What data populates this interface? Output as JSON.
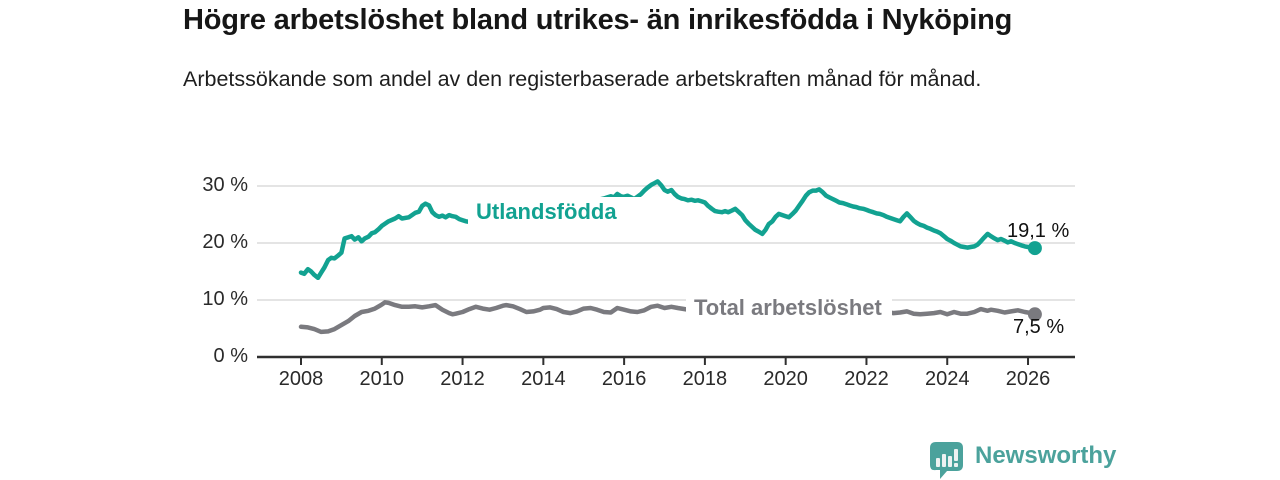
{
  "branding": {
    "name": "Newsworthy",
    "color": "#4BA29C",
    "icon": "speech-bubble-bar-chart-icon"
  },
  "chart_data": {
    "type": "line",
    "title": "Högre arbetslöshet bland utrikes- än inrikesfödda i Nyköping",
    "subtitle": "Arbetssökande som andel av den registerbaserade arbetskraften månad för månad.",
    "xlabel": "",
    "ylabel": "",
    "unit": "%",
    "grid": "horizontal",
    "legend_position": "inline-labels",
    "xlim": [
      2006.9,
      2027.1
    ],
    "ylim": [
      0,
      32
    ],
    "x_axis": {
      "ticks": [
        {
          "value": 2008,
          "label": "2008"
        },
        {
          "value": 2010,
          "label": "2010"
        },
        {
          "value": 2012,
          "label": "2012"
        },
        {
          "value": 2014,
          "label": "2014"
        },
        {
          "value": 2016,
          "label": "2016"
        },
        {
          "value": 2018,
          "label": "2018"
        },
        {
          "value": 2020,
          "label": "2020"
        },
        {
          "value": 2022,
          "label": "2022"
        },
        {
          "value": 2024,
          "label": "2024"
        },
        {
          "value": 2026,
          "label": "2026"
        }
      ]
    },
    "y_axis": {
      "ticks": [
        {
          "value": 0,
          "label": "0 %"
        },
        {
          "value": 10,
          "label": "10 %"
        },
        {
          "value": 20,
          "label": "20 %"
        },
        {
          "value": 30,
          "label": "30 %"
        }
      ]
    },
    "style": {
      "grid_color": "#DBDBDB",
      "axis_color": "#2F2F2F"
    },
    "series": [
      {
        "id": "utlandsfodda",
        "name": "Utlandsfödda",
        "color": "#12A291",
        "end_value": 19.1,
        "end_value_label": "19,1 %",
        "points": [
          [
            2008.0,
            14.8
          ],
          [
            2008.08,
            14.6
          ],
          [
            2008.17,
            15.4
          ],
          [
            2008.25,
            15.0
          ],
          [
            2008.33,
            14.4
          ],
          [
            2008.42,
            13.9
          ],
          [
            2008.5,
            14.8
          ],
          [
            2008.58,
            15.7
          ],
          [
            2008.67,
            17.0
          ],
          [
            2008.75,
            17.4
          ],
          [
            2008.83,
            17.3
          ],
          [
            2008.92,
            17.8
          ],
          [
            2009.0,
            18.3
          ],
          [
            2009.08,
            20.8
          ],
          [
            2009.17,
            21.0
          ],
          [
            2009.25,
            21.2
          ],
          [
            2009.33,
            20.6
          ],
          [
            2009.42,
            21.0
          ],
          [
            2009.5,
            20.3
          ],
          [
            2009.58,
            20.8
          ],
          [
            2009.67,
            21.1
          ],
          [
            2009.75,
            21.7
          ],
          [
            2009.83,
            21.9
          ],
          [
            2009.92,
            22.4
          ],
          [
            2010.0,
            23.0
          ],
          [
            2010.17,
            23.8
          ],
          [
            2010.33,
            24.3
          ],
          [
            2010.42,
            24.7
          ],
          [
            2010.5,
            24.3
          ],
          [
            2010.67,
            24.5
          ],
          [
            2010.83,
            25.3
          ],
          [
            2010.92,
            25.5
          ],
          [
            2011.0,
            26.5
          ],
          [
            2011.08,
            26.9
          ],
          [
            2011.17,
            26.6
          ],
          [
            2011.25,
            25.4
          ],
          [
            2011.33,
            24.9
          ],
          [
            2011.42,
            24.6
          ],
          [
            2011.5,
            24.8
          ],
          [
            2011.58,
            24.5
          ],
          [
            2011.67,
            24.9
          ],
          [
            2011.75,
            24.7
          ],
          [
            2011.83,
            24.6
          ],
          [
            2011.92,
            24.2
          ],
          [
            2012.0,
            24.0
          ],
          [
            2012.08,
            23.8
          ],
          [
            2012.17,
            23.7
          ],
          [
            2012.25,
            23.5
          ],
          [
            2012.33,
            23.6
          ],
          [
            2012.42,
            23.4
          ],
          [
            2012.75,
            23.9
          ],
          [
            2013.25,
            24.6
          ],
          [
            2013.75,
            25.3
          ],
          [
            2014.25,
            26.0
          ],
          [
            2014.75,
            26.7
          ],
          [
            2015.25,
            27.4
          ],
          [
            2015.5,
            27.8
          ],
          [
            2015.58,
            28.0
          ],
          [
            2015.67,
            28.2
          ],
          [
            2015.75,
            28.0
          ],
          [
            2015.83,
            28.6
          ],
          [
            2015.92,
            28.2
          ],
          [
            2016.0,
            28.1
          ],
          [
            2016.08,
            28.3
          ],
          [
            2016.17,
            28.0
          ],
          [
            2016.25,
            27.7
          ],
          [
            2016.33,
            28.1
          ],
          [
            2016.42,
            28.6
          ],
          [
            2016.5,
            29.2
          ],
          [
            2016.58,
            29.7
          ],
          [
            2016.67,
            30.2
          ],
          [
            2016.75,
            30.5
          ],
          [
            2016.83,
            30.8
          ],
          [
            2016.92,
            30.1
          ],
          [
            2017.0,
            29.3
          ],
          [
            2017.08,
            29.0
          ],
          [
            2017.17,
            29.3
          ],
          [
            2017.25,
            28.6
          ],
          [
            2017.33,
            28.1
          ],
          [
            2017.42,
            27.8
          ],
          [
            2017.5,
            27.7
          ],
          [
            2017.58,
            27.5
          ],
          [
            2017.67,
            27.6
          ],
          [
            2017.75,
            27.4
          ],
          [
            2017.83,
            27.5
          ],
          [
            2017.92,
            27.3
          ],
          [
            2018.0,
            27.1
          ],
          [
            2018.08,
            26.5
          ],
          [
            2018.17,
            26.0
          ],
          [
            2018.25,
            25.6
          ],
          [
            2018.33,
            25.5
          ],
          [
            2018.42,
            25.4
          ],
          [
            2018.5,
            25.6
          ],
          [
            2018.58,
            25.4
          ],
          [
            2018.67,
            25.7
          ],
          [
            2018.75,
            26.0
          ],
          [
            2018.83,
            25.5
          ],
          [
            2018.92,
            24.9
          ],
          [
            2019.0,
            24.0
          ],
          [
            2019.08,
            23.4
          ],
          [
            2019.17,
            22.8
          ],
          [
            2019.25,
            22.3
          ],
          [
            2019.33,
            22.0
          ],
          [
            2019.42,
            21.6
          ],
          [
            2019.5,
            22.3
          ],
          [
            2019.58,
            23.3
          ],
          [
            2019.67,
            23.8
          ],
          [
            2019.75,
            24.6
          ],
          [
            2019.83,
            25.1
          ],
          [
            2019.92,
            24.9
          ],
          [
            2020.0,
            24.7
          ],
          [
            2020.08,
            24.5
          ],
          [
            2020.17,
            25.1
          ],
          [
            2020.25,
            25.7
          ],
          [
            2020.33,
            26.5
          ],
          [
            2020.42,
            27.4
          ],
          [
            2020.5,
            28.3
          ],
          [
            2020.58,
            28.9
          ],
          [
            2020.67,
            29.2
          ],
          [
            2020.75,
            29.2
          ],
          [
            2020.83,
            29.4
          ],
          [
            2020.92,
            28.9
          ],
          [
            2021.0,
            28.3
          ],
          [
            2021.08,
            28.0
          ],
          [
            2021.17,
            27.7
          ],
          [
            2021.25,
            27.4
          ],
          [
            2021.33,
            27.1
          ],
          [
            2021.42,
            27.0
          ],
          [
            2021.5,
            26.8
          ],
          [
            2021.58,
            26.6
          ],
          [
            2021.67,
            26.4
          ],
          [
            2021.75,
            26.3
          ],
          [
            2021.83,
            26.1
          ],
          [
            2021.92,
            26.0
          ],
          [
            2022.0,
            25.8
          ],
          [
            2022.08,
            25.6
          ],
          [
            2022.17,
            25.4
          ],
          [
            2022.25,
            25.2
          ],
          [
            2022.33,
            25.1
          ],
          [
            2022.42,
            24.9
          ],
          [
            2022.5,
            24.6
          ],
          [
            2022.58,
            24.4
          ],
          [
            2022.67,
            24.2
          ],
          [
            2022.75,
            24.0
          ],
          [
            2022.83,
            23.8
          ],
          [
            2022.92,
            24.6
          ],
          [
            2023.0,
            25.2
          ],
          [
            2023.08,
            24.6
          ],
          [
            2023.17,
            23.9
          ],
          [
            2023.25,
            23.5
          ],
          [
            2023.33,
            23.2
          ],
          [
            2023.42,
            23.0
          ],
          [
            2023.5,
            22.7
          ],
          [
            2023.58,
            22.5
          ],
          [
            2023.67,
            22.2
          ],
          [
            2023.75,
            22.0
          ],
          [
            2023.83,
            21.7
          ],
          [
            2023.92,
            21.2
          ],
          [
            2024.0,
            20.7
          ],
          [
            2024.08,
            20.4
          ],
          [
            2024.17,
            20.0
          ],
          [
            2024.25,
            19.7
          ],
          [
            2024.33,
            19.4
          ],
          [
            2024.42,
            19.3
          ],
          [
            2024.5,
            19.2
          ],
          [
            2024.58,
            19.3
          ],
          [
            2024.67,
            19.4
          ],
          [
            2024.75,
            19.7
          ],
          [
            2024.83,
            20.3
          ],
          [
            2024.92,
            21.0
          ],
          [
            2025.0,
            21.6
          ],
          [
            2025.08,
            21.2
          ],
          [
            2025.17,
            20.8
          ],
          [
            2025.25,
            20.5
          ],
          [
            2025.33,
            20.7
          ],
          [
            2025.42,
            20.4
          ],
          [
            2025.5,
            20.1
          ],
          [
            2025.58,
            20.3
          ],
          [
            2025.67,
            20.0
          ],
          [
            2025.75,
            19.8
          ],
          [
            2025.83,
            19.6
          ],
          [
            2025.92,
            19.4
          ],
          [
            2026.0,
            19.3
          ],
          [
            2026.08,
            19.2
          ],
          [
            2026.17,
            19.1
          ]
        ]
      },
      {
        "id": "total-arbetsloshet",
        "name": "Total arbetslöshet",
        "color": "#7A7A7F",
        "end_value": 7.5,
        "end_value_label": "7,5 %",
        "points": [
          [
            2008.0,
            5.3
          ],
          [
            2008.17,
            5.2
          ],
          [
            2008.33,
            4.9
          ],
          [
            2008.5,
            4.4
          ],
          [
            2008.67,
            4.5
          ],
          [
            2008.83,
            4.9
          ],
          [
            2009.0,
            5.6
          ],
          [
            2009.17,
            6.3
          ],
          [
            2009.33,
            7.2
          ],
          [
            2009.5,
            7.9
          ],
          [
            2009.67,
            8.1
          ],
          [
            2009.83,
            8.5
          ],
          [
            2010.0,
            9.2
          ],
          [
            2010.08,
            9.6
          ],
          [
            2010.17,
            9.5
          ],
          [
            2010.33,
            9.1
          ],
          [
            2010.5,
            8.8
          ],
          [
            2010.67,
            8.8
          ],
          [
            2010.83,
            8.9
          ],
          [
            2011.0,
            8.7
          ],
          [
            2011.17,
            8.9
          ],
          [
            2011.33,
            9.1
          ],
          [
            2011.5,
            8.3
          ],
          [
            2011.67,
            7.7
          ],
          [
            2011.75,
            7.5
          ],
          [
            2011.83,
            7.6
          ],
          [
            2012.0,
            7.9
          ],
          [
            2012.17,
            8.4
          ],
          [
            2012.33,
            8.8
          ],
          [
            2012.5,
            8.5
          ],
          [
            2012.67,
            8.3
          ],
          [
            2012.83,
            8.6
          ],
          [
            2013.0,
            9.0
          ],
          [
            2013.08,
            9.1
          ],
          [
            2013.25,
            8.9
          ],
          [
            2013.42,
            8.4
          ],
          [
            2013.58,
            7.9
          ],
          [
            2013.75,
            8.0
          ],
          [
            2013.92,
            8.3
          ],
          [
            2014.0,
            8.6
          ],
          [
            2014.17,
            8.7
          ],
          [
            2014.33,
            8.4
          ],
          [
            2014.5,
            7.9
          ],
          [
            2014.67,
            7.7
          ],
          [
            2014.83,
            8.0
          ],
          [
            2015.0,
            8.5
          ],
          [
            2015.17,
            8.6
          ],
          [
            2015.33,
            8.3
          ],
          [
            2015.5,
            7.9
          ],
          [
            2015.67,
            7.8
          ],
          [
            2015.83,
            8.6
          ],
          [
            2016.0,
            8.3
          ],
          [
            2016.17,
            8.0
          ],
          [
            2016.33,
            7.9
          ],
          [
            2016.5,
            8.2
          ],
          [
            2016.67,
            8.8
          ],
          [
            2016.83,
            9.0
          ],
          [
            2017.0,
            8.6
          ],
          [
            2017.17,
            8.8
          ],
          [
            2017.33,
            8.6
          ],
          [
            2017.5,
            8.4
          ],
          [
            2017.67,
            8.2
          ],
          [
            2018.0,
            8.3
          ],
          [
            2018.5,
            7.9
          ],
          [
            2019.0,
            8.2
          ],
          [
            2019.5,
            7.9
          ],
          [
            2020.0,
            8.3
          ],
          [
            2020.5,
            8.8
          ],
          [
            2021.0,
            8.4
          ],
          [
            2021.5,
            8.0
          ],
          [
            2022.0,
            7.8
          ],
          [
            2022.33,
            7.9
          ],
          [
            2022.5,
            7.9
          ],
          [
            2022.67,
            7.7
          ],
          [
            2022.83,
            7.8
          ],
          [
            2023.0,
            8.0
          ],
          [
            2023.17,
            7.6
          ],
          [
            2023.33,
            7.5
          ],
          [
            2023.5,
            7.6
          ],
          [
            2023.67,
            7.7
          ],
          [
            2023.83,
            7.9
          ],
          [
            2024.0,
            7.5
          ],
          [
            2024.17,
            7.9
          ],
          [
            2024.33,
            7.6
          ],
          [
            2024.5,
            7.6
          ],
          [
            2024.67,
            7.9
          ],
          [
            2024.83,
            8.4
          ],
          [
            2025.0,
            8.1
          ],
          [
            2025.08,
            8.3
          ],
          [
            2025.25,
            8.1
          ],
          [
            2025.42,
            7.8
          ],
          [
            2025.58,
            8.0
          ],
          [
            2025.75,
            8.2
          ],
          [
            2025.92,
            7.9
          ],
          [
            2026.08,
            7.7
          ],
          [
            2026.17,
            7.5
          ]
        ]
      }
    ]
  }
}
